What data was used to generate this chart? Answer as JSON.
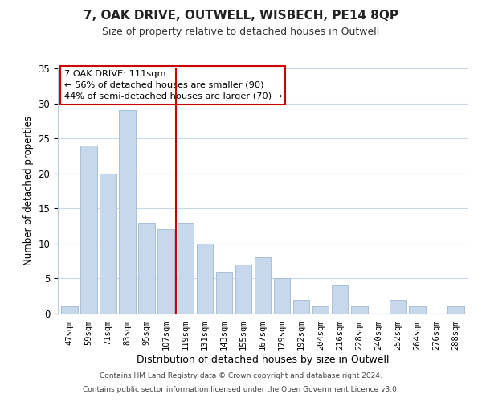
{
  "title": "7, OAK DRIVE, OUTWELL, WISBECH, PE14 8QP",
  "subtitle": "Size of property relative to detached houses in Outwell",
  "xlabel": "Distribution of detached houses by size in Outwell",
  "ylabel": "Number of detached properties",
  "bar_color": "#c8d8ec",
  "bar_edge_color": "#a8c0d8",
  "categories": [
    "47sqm",
    "59sqm",
    "71sqm",
    "83sqm",
    "95sqm",
    "107sqm",
    "119sqm",
    "131sqm",
    "143sqm",
    "155sqm",
    "167sqm",
    "179sqm",
    "192sqm",
    "204sqm",
    "216sqm",
    "228sqm",
    "240sqm",
    "252sqm",
    "264sqm",
    "276sqm",
    "288sqm"
  ],
  "values": [
    1,
    24,
    20,
    29,
    13,
    12,
    13,
    10,
    6,
    7,
    8,
    5,
    2,
    1,
    4,
    1,
    0,
    2,
    1,
    0,
    1
  ],
  "ylim": [
    0,
    35
  ],
  "yticks": [
    0,
    5,
    10,
    15,
    20,
    25,
    30,
    35
  ],
  "vline_x": 5.5,
  "vline_color": "#cc0000",
  "annotation_title": "7 OAK DRIVE: 111sqm",
  "annotation_line1": "← 56% of detached houses are smaller (90)",
  "annotation_line2": "44% of semi-detached houses are larger (70) →",
  "footer1": "Contains HM Land Registry data © Crown copyright and database right 2024.",
  "footer2": "Contains public sector information licensed under the Open Government Licence v3.0.",
  "background_color": "#ffffff",
  "grid_color": "#c8d8e8"
}
